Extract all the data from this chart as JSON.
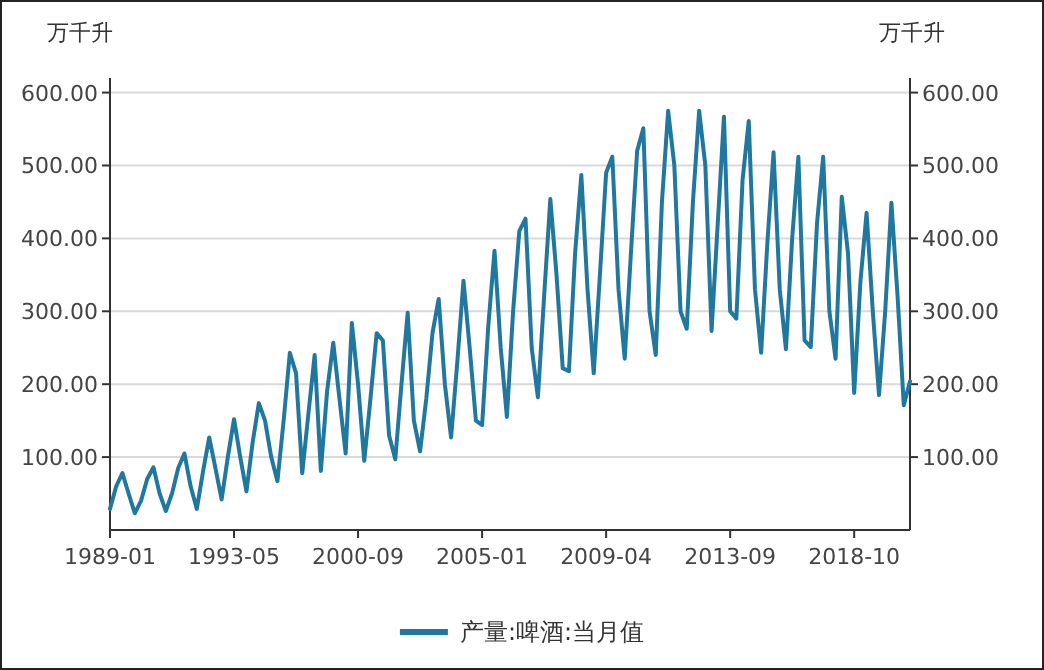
{
  "chart_data": {
    "type": "line",
    "ylabel": "万千升",
    "y2label": "万千升",
    "categories": [
      "1989-01",
      null,
      null,
      null,
      null,
      null,
      null,
      null,
      null,
      null,
      null,
      null,
      null,
      null,
      null,
      null,
      null,
      null,
      null,
      null,
      "1993-05",
      null,
      null,
      null,
      null,
      null,
      null,
      null,
      null,
      null,
      null,
      null,
      null,
      null,
      null,
      null,
      null,
      null,
      null,
      null,
      "2000-09",
      null,
      null,
      null,
      null,
      null,
      null,
      null,
      null,
      null,
      null,
      null,
      null,
      null,
      null,
      null,
      null,
      null,
      null,
      null,
      "2005-01",
      null,
      null,
      null,
      null,
      null,
      null,
      null,
      null,
      null,
      null,
      null,
      null,
      null,
      null,
      null,
      null,
      null,
      null,
      null,
      "2009-04",
      null,
      null,
      null,
      null,
      null,
      null,
      null,
      null,
      null,
      null,
      null,
      null,
      null,
      null,
      null,
      null,
      null,
      null,
      null,
      "2013-09",
      null,
      null,
      null,
      null,
      null,
      null,
      null,
      null,
      null,
      null,
      null,
      null,
      null,
      null,
      null,
      null,
      null,
      null,
      null,
      "2018-10",
      null,
      null,
      null,
      null,
      null,
      null,
      null,
      null,
      null
    ],
    "series": [
      {
        "name": "产量:啤酒:当月值",
        "color": "#21789f",
        "values": [
          29,
          60,
          78,
          50,
          23,
          40,
          70,
          86,
          50,
          26,
          50,
          85,
          105,
          60,
          29,
          80,
          127,
          85,
          42,
          100,
          152,
          100,
          53,
          120,
          174,
          150,
          100,
          67,
          150,
          243,
          215,
          78,
          160,
          240,
          81,
          190,
          257,
          180,
          105,
          284,
          200,
          95,
          180,
          270,
          260,
          130,
          97,
          200,
          298,
          150,
          108,
          180,
          270,
          317,
          200,
          127,
          230,
          342,
          250,
          150,
          144,
          280,
          383,
          250,
          155,
          300,
          410,
          427,
          250,
          182,
          320,
          454,
          350,
          222,
          218,
          380,
          487,
          330,
          215,
          350,
          490,
          512,
          330,
          235,
          380,
          520,
          551,
          300,
          240,
          450,
          575,
          500,
          300,
          276,
          450,
          575,
          500,
          273,
          421,
          567,
          300,
          290,
          480,
          561,
          330,
          243,
          394,
          518,
          330,
          248,
          400,
          512,
          260,
          251,
          420,
          512,
          300,
          235,
          457,
          380,
          188,
          340,
          435,
          300,
          185,
          300,
          449,
          320,
          171,
          204
        ]
      }
    ],
    "ylim": [
      0,
      620
    ],
    "yticks": [
      {
        "value": 100,
        "label": "100.00"
      },
      {
        "value": 200,
        "label": "200.00"
      },
      {
        "value": 300,
        "label": "300.00"
      },
      {
        "value": 400,
        "label": "400.00"
      },
      {
        "value": 500,
        "label": "500.00"
      },
      {
        "value": 600,
        "label": "600.00"
      }
    ],
    "y2lim": [
      0,
      620
    ],
    "y2ticks": [
      {
        "value": 100,
        "label": "100.00"
      },
      {
        "value": 200,
        "label": "200.00"
      },
      {
        "value": 300,
        "label": "300.00"
      },
      {
        "value": 400,
        "label": "400.00"
      },
      {
        "value": 500,
        "label": "500.00"
      },
      {
        "value": 600,
        "label": "600.00"
      }
    ],
    "grid": "y",
    "legend": "bottom"
  }
}
